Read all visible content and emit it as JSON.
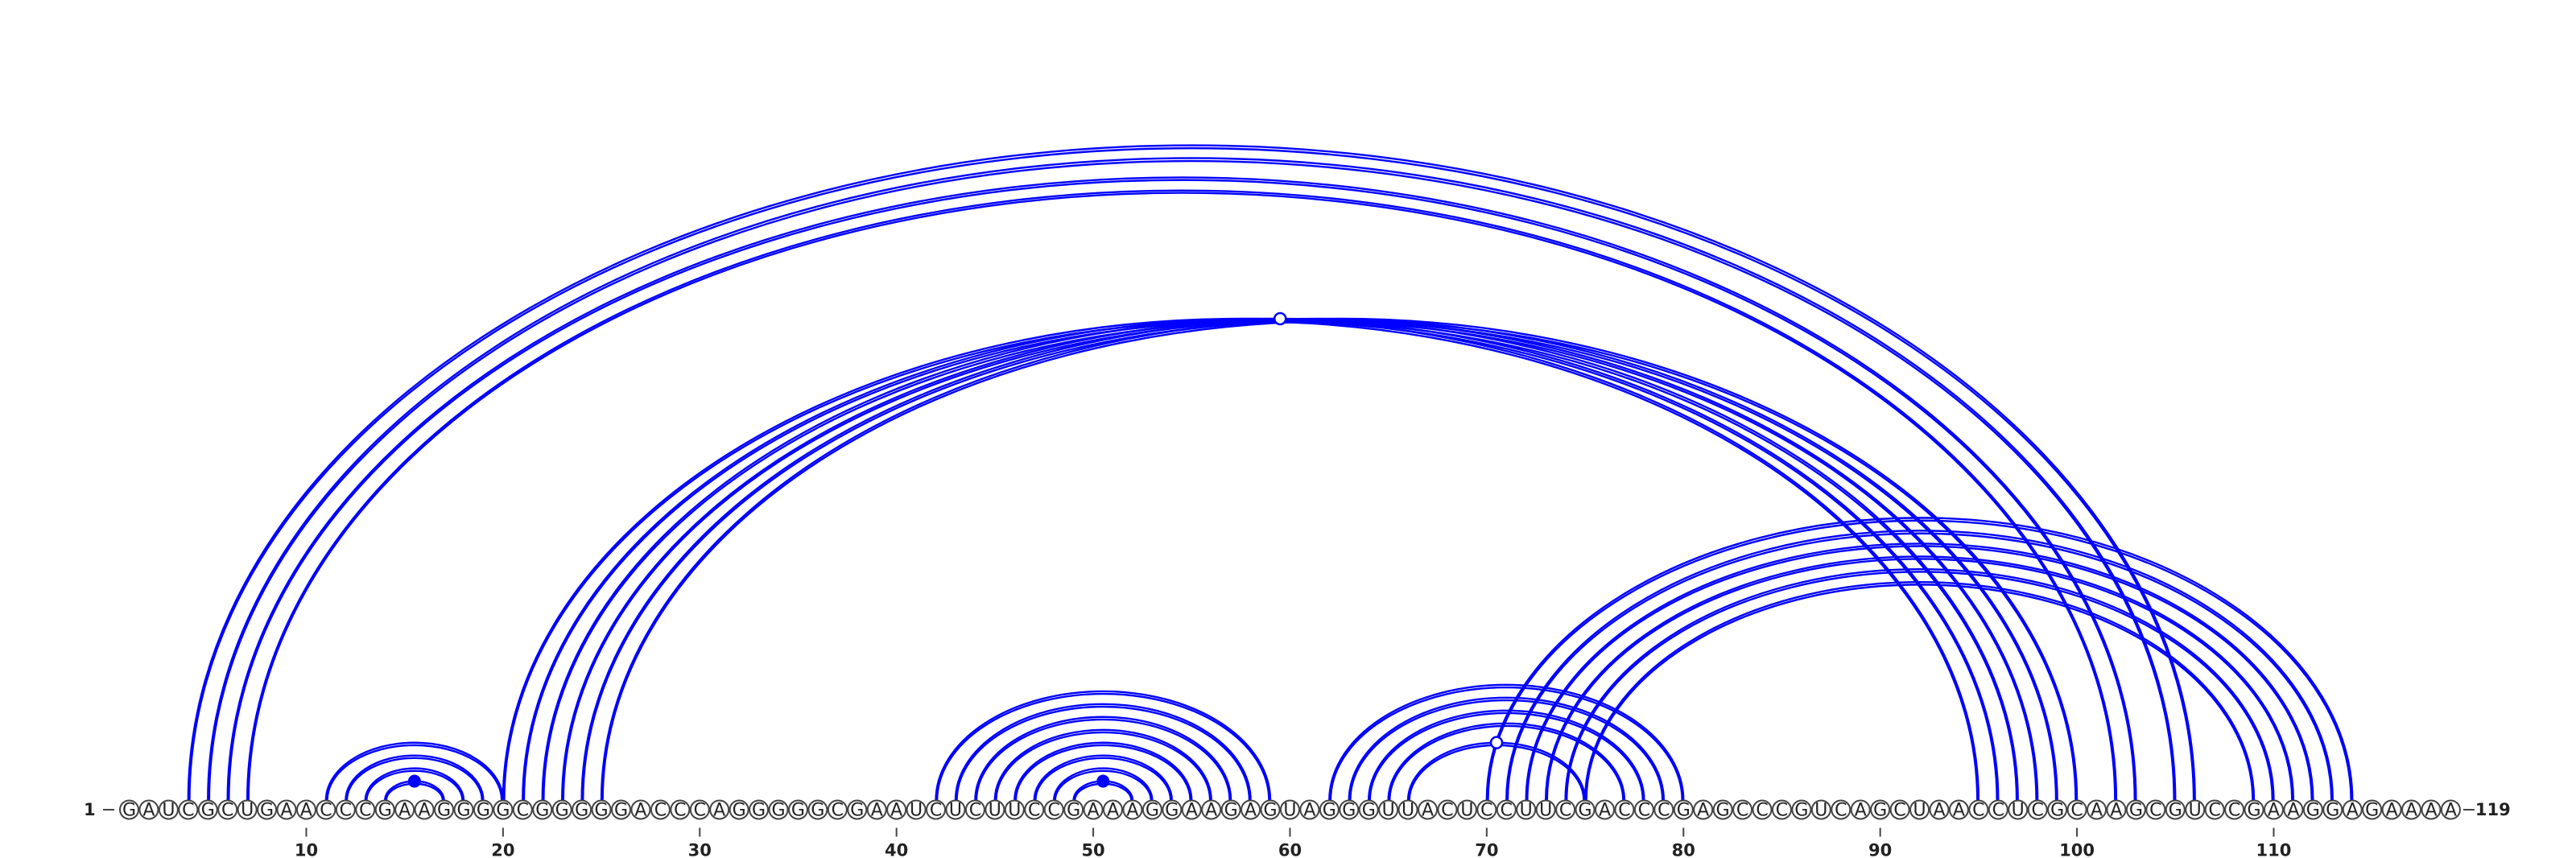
{
  "sequence": "GAUCGCUGAACCCGAAGGGGCGGGGGACCCAGGGGGCGAAUCUCUUCCGAAAGGAAGAGUAGGGUUACUCCUUCGACCCGAGCCCGUCAGCUAACCUCGCAAGCGUCCGAAGGAGAAAA",
  "start_label": "1",
  "end_label": "119",
  "position_labels": [
    {
      "pos": 10,
      "text": "10"
    },
    {
      "pos": 20,
      "text": "20"
    },
    {
      "pos": 30,
      "text": "30"
    },
    {
      "pos": 40,
      "text": "40"
    },
    {
      "pos": 50,
      "text": "50"
    },
    {
      "pos": 60,
      "text": "60"
    },
    {
      "pos": 70,
      "text": "70"
    },
    {
      "pos": 80,
      "text": "80"
    },
    {
      "pos": 90,
      "text": "90"
    },
    {
      "pos": 100,
      "text": "100"
    },
    {
      "pos": 110,
      "text": "110"
    }
  ],
  "colors": {
    "arc": "#0000ff",
    "backbone": "#444444",
    "text": "#222222"
  },
  "helices": [
    {
      "pairs": [
        [
          4,
          106
        ],
        [
          5,
          105
        ],
        [
          6,
          103
        ],
        [
          7,
          102
        ]
      ]
    },
    {
      "pairs": [
        [
          11,
          20
        ],
        [
          12,
          19
        ],
        [
          13,
          18
        ],
        [
          14,
          17
        ]
      ]
    },
    {
      "pairs": [
        [
          20,
          95
        ],
        [
          21,
          96
        ],
        [
          22,
          97
        ],
        [
          23,
          98
        ],
        [
          24,
          99
        ],
        [
          25,
          100
        ]
      ]
    },
    {
      "pairs": [
        [
          42,
          59
        ],
        [
          43,
          58
        ],
        [
          44,
          57
        ],
        [
          45,
          56
        ],
        [
          46,
          55
        ],
        [
          47,
          54
        ],
        [
          48,
          53
        ],
        [
          49,
          52
        ]
      ]
    },
    {
      "pairs": [
        [
          62,
          80
        ],
        [
          63,
          79
        ],
        [
          64,
          78
        ],
        [
          65,
          77
        ],
        [
          66,
          75
        ]
      ]
    },
    {
      "pairs": [
        [
          70,
          114
        ],
        [
          71,
          113
        ],
        [
          72,
          112
        ],
        [
          73,
          111
        ],
        [
          74,
          110
        ],
        [
          75,
          109
        ]
      ]
    }
  ],
  "markers": [
    {
      "type": "filled",
      "i": 14,
      "j": 17
    },
    {
      "type": "filled",
      "i": 49,
      "j": 52
    },
    {
      "type": "open",
      "i": 22,
      "j": 97
    },
    {
      "type": "open",
      "i": 66,
      "j": 75
    }
  ]
}
